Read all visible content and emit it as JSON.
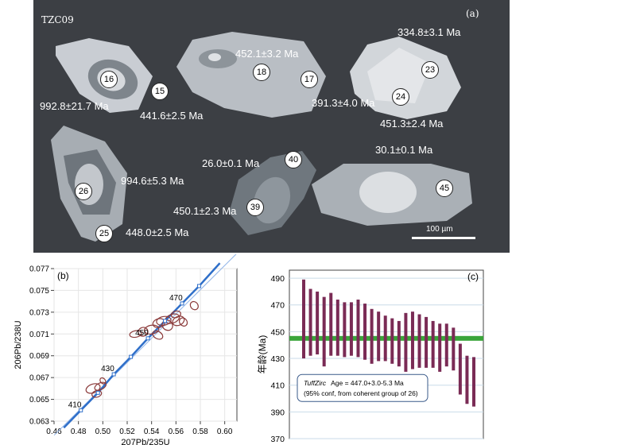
{
  "colors": {
    "background_a": "#3c3f44",
    "ellipse": "#8b3a3a",
    "concordia": "#2f6fc9",
    "bar": "#7a2b55",
    "mean": "#3aa53a"
  },
  "panel_a": {
    "sample": "TZC09",
    "panel_label": "(a)",
    "scale_label": "100 µm",
    "spots": [
      {
        "id": "16",
        "age": "992.8±21.7 Ma"
      },
      {
        "id": "15",
        "age": "441.6±2.5 Ma"
      },
      {
        "id": "18",
        "age": "452.1±3.2 Ma"
      },
      {
        "id": "17",
        "age": "391.3±4.0 Ma"
      },
      {
        "id": "23",
        "age": "334.8±3.1 Ma"
      },
      {
        "id": "24",
        "age": "451.3±2.4 Ma"
      },
      {
        "id": "26",
        "age": "994.6±5.3 Ma"
      },
      {
        "id": "25",
        "age": "448.0±2.5 Ma"
      },
      {
        "id": "40",
        "age": "26.0±0.1 Ma"
      },
      {
        "id": "39",
        "age": "450.1±2.3 Ma"
      },
      {
        "id": "45",
        "age": "30.1±0.1 Ma"
      }
    ]
  },
  "chart_data": [
    {
      "type": "scatter",
      "title": "(b)",
      "xlabel": "207Pb/235U",
      "ylabel": "206Pb/238U",
      "xlim": [
        0.46,
        0.61
      ],
      "ylim": [
        0.063,
        0.077
      ],
      "xticks": [
        "0.46",
        "0.48",
        "0.50",
        "0.52",
        "0.54",
        "0.56",
        "0.58",
        "0.60"
      ],
      "yticks": [
        "0.063",
        "0.065",
        "0.067",
        "0.069",
        "0.071",
        "0.073",
        "0.075",
        "0.077"
      ],
      "concordia_ages": [
        "410",
        "430",
        "450",
        "470"
      ],
      "concordia_points": [
        {
          "x": 0.482,
          "y": 0.064
        },
        {
          "x": 0.496,
          "y": 0.0656
        },
        {
          "x": 0.509,
          "y": 0.0673
        },
        {
          "x": 0.523,
          "y": 0.0689
        },
        {
          "x": 0.537,
          "y": 0.0706
        },
        {
          "x": 0.551,
          "y": 0.0722
        },
        {
          "x": 0.565,
          "y": 0.0738
        },
        {
          "x": 0.579,
          "y": 0.0754
        }
      ],
      "ellipses": [
        {
          "x": 0.492,
          "y": 0.066,
          "rx": 0.006,
          "ry": 0.0004,
          "rot": -20
        },
        {
          "x": 0.495,
          "y": 0.0655,
          "rx": 0.004,
          "ry": 0.0003,
          "rot": -15
        },
        {
          "x": 0.498,
          "y": 0.0662,
          "rx": 0.005,
          "ry": 0.0003,
          "rot": -25
        },
        {
          "x": 0.5,
          "y": 0.0667,
          "rx": 0.002,
          "ry": 0.0003,
          "rot": -40
        },
        {
          "x": 0.527,
          "y": 0.071,
          "rx": 0.005,
          "ry": 0.0003,
          "rot": -10
        },
        {
          "x": 0.533,
          "y": 0.0712,
          "rx": 0.004,
          "ry": 0.0004,
          "rot": -20
        },
        {
          "x": 0.54,
          "y": 0.0714,
          "rx": 0.006,
          "ry": 0.0004,
          "rot": -10
        },
        {
          "x": 0.546,
          "y": 0.072,
          "rx": 0.005,
          "ry": 0.0004,
          "rot": -15
        },
        {
          "x": 0.55,
          "y": 0.0722,
          "rx": 0.006,
          "ry": 0.0004,
          "rot": -10
        },
        {
          "x": 0.553,
          "y": 0.0718,
          "rx": 0.004,
          "ry": 0.0005,
          "rot": -50
        },
        {
          "x": 0.557,
          "y": 0.0724,
          "rx": 0.006,
          "ry": 0.0004,
          "rot": -20
        },
        {
          "x": 0.56,
          "y": 0.0728,
          "rx": 0.004,
          "ry": 0.0003,
          "rot": -15
        },
        {
          "x": 0.562,
          "y": 0.0722,
          "rx": 0.005,
          "ry": 0.0004,
          "rot": -25
        },
        {
          "x": 0.566,
          "y": 0.0721,
          "rx": 0.003,
          "ry": 0.0004,
          "rot": -40
        },
        {
          "x": 0.545,
          "y": 0.0709,
          "rx": 0.003,
          "ry": 0.0005,
          "rot": -60
        },
        {
          "x": 0.575,
          "y": 0.0736,
          "rx": 0.003,
          "ry": 0.0004,
          "rot": -40
        }
      ]
    },
    {
      "type": "bar",
      "title": "(c)",
      "ylabel": "年龄(Ma)",
      "ylim": [
        370,
        496
      ],
      "yticks": [
        "370",
        "390",
        "410",
        "430",
        "450",
        "470",
        "490"
      ],
      "mean_age": 445,
      "annotation_line1_italic": "TuffZirc",
      "annotation_line1": "Age = 447.0+3.0-5.3 Ma",
      "annotation_line2": "(95% conf, from coherent group of 26)",
      "bars": [
        {
          "low": 430,
          "high": 489
        },
        {
          "low": 432,
          "high": 482
        },
        {
          "low": 433,
          "high": 480
        },
        {
          "low": 424,
          "high": 476
        },
        {
          "low": 432,
          "high": 479
        },
        {
          "low": 432,
          "high": 474
        },
        {
          "low": 431,
          "high": 472
        },
        {
          "low": 432,
          "high": 472
        },
        {
          "low": 431,
          "high": 474
        },
        {
          "low": 429,
          "high": 471
        },
        {
          "low": 426,
          "high": 467
        },
        {
          "low": 428,
          "high": 465
        },
        {
          "low": 428,
          "high": 462
        },
        {
          "low": 426,
          "high": 460
        },
        {
          "low": 424,
          "high": 458
        },
        {
          "low": 420,
          "high": 464
        },
        {
          "low": 422,
          "high": 465
        },
        {
          "low": 423,
          "high": 463
        },
        {
          "low": 423,
          "high": 461
        },
        {
          "low": 423,
          "high": 458
        },
        {
          "low": 420,
          "high": 456
        },
        {
          "low": 424,
          "high": 456
        },
        {
          "low": 421,
          "high": 453
        },
        {
          "low": 403,
          "high": 441
        },
        {
          "low": 396,
          "high": 432
        },
        {
          "low": 394,
          "high": 431
        }
      ]
    }
  ]
}
